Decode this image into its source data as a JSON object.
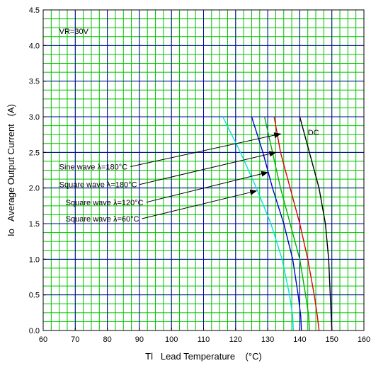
{
  "chart_data": {
    "type": "line",
    "xlabel": "Tl   Lead Temperature    (°C)",
    "ylabel": "Io   Average Output Current   (A)",
    "xlim": [
      60,
      160
    ],
    "ylim": [
      0,
      4.5
    ],
    "x_ticks": [
      60,
      70,
      80,
      90,
      100,
      110,
      120,
      130,
      140,
      150,
      160
    ],
    "y_ticks": [
      0.0,
      0.5,
      1.0,
      1.5,
      2.0,
      2.5,
      3.0,
      3.5,
      4.0,
      4.5
    ],
    "x_tick_labels": [
      "60",
      "70",
      "80",
      "90",
      "100",
      "110",
      "120",
      "130",
      "140",
      "150",
      "160"
    ],
    "y_tick_labels": [
      "0.0",
      "0.5",
      "1.0",
      "1.5",
      "2.0",
      "2.5",
      "3.0",
      "3.5",
      "4.0",
      "4.5"
    ],
    "grid": {
      "on": true,
      "major_color": "#0000a0",
      "minor_color": "#00c000"
    },
    "condition_label": "VR=30V",
    "series": [
      {
        "name": "DC",
        "color": "#000000",
        "x": [
          140,
          143,
          146,
          148,
          149,
          150
        ],
        "y": [
          3.0,
          2.5,
          2.0,
          1.5,
          1.0,
          0.0
        ]
      },
      {
        "name": "Sine wave λ=180°C",
        "color": "#e00000",
        "x": [
          132,
          134,
          137,
          140,
          142.5,
          144.5,
          145.5,
          146
        ],
        "y": [
          3.0,
          2.5,
          2.0,
          1.5,
          1.0,
          0.5,
          0.2,
          0.0
        ]
      },
      {
        "name": "Square wave λ=180°C",
        "color": "#00b000",
        "x": [
          129,
          131.5,
          134,
          137,
          140,
          141.8,
          142.8,
          143
        ],
        "y": [
          3.0,
          2.5,
          2.0,
          1.5,
          1.0,
          0.5,
          0.2,
          0.0
        ]
      },
      {
        "name": "Square wave λ=120°C",
        "color": "#0000d0",
        "x": [
          125,
          128.5,
          131.5,
          135,
          137.8,
          139.5,
          140.3,
          140.5
        ],
        "y": [
          3.0,
          2.5,
          2.0,
          1.5,
          1.0,
          0.5,
          0.2,
          0.0
        ]
      },
      {
        "name": "Square wave λ=60°C",
        "color": "#00e0e0",
        "x": [
          116,
          121.5,
          126.5,
          131,
          134.5,
          136.8,
          137.8,
          138
        ],
        "y": [
          3.0,
          2.5,
          2.0,
          1.5,
          1.0,
          0.5,
          0.2,
          0.0
        ]
      }
    ],
    "annotations": [
      {
        "text": "DC",
        "x": 142.5,
        "y": 2.78
      },
      {
        "text": "Sine wave λ=180°C",
        "x": 65,
        "y": 2.3,
        "arrow_to": [
          134,
          2.76
        ]
      },
      {
        "text": "Square wave λ=180°C",
        "x": 65,
        "y": 2.05,
        "arrow_to": [
          132.5,
          2.5
        ]
      },
      {
        "text": "Square wave λ=120°C",
        "x": 67,
        "y": 1.8,
        "arrow_to": [
          130,
          2.22
        ]
      },
      {
        "text": "Square wave λ=60°C",
        "x": 67,
        "y": 1.57,
        "arrow_to": [
          126.5,
          1.96
        ]
      }
    ]
  }
}
